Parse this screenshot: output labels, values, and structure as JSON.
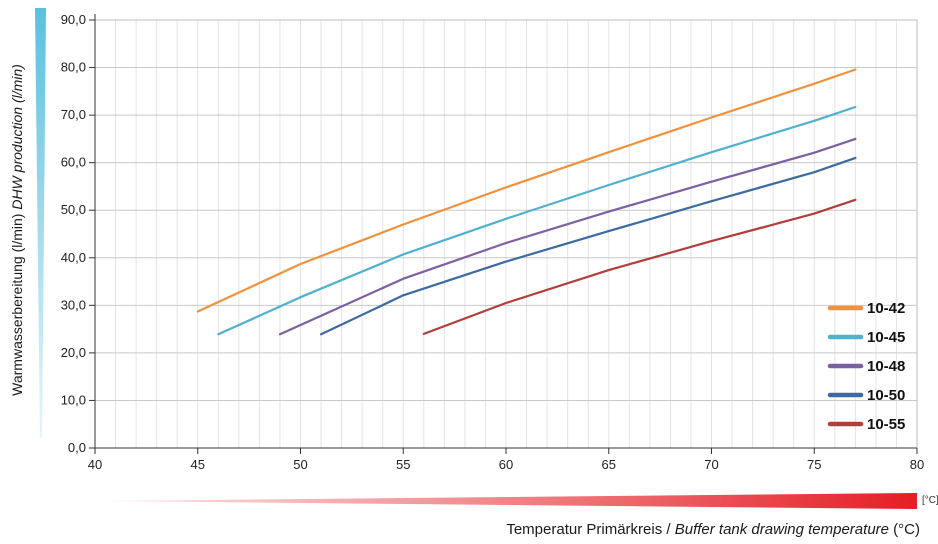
{
  "chart_data": {
    "type": "line",
    "xlabel_main": "Temperatur Primärkreis / ",
    "xlabel_italic": "Buffer tank drawing temperature",
    "xlabel_unit": " (°C)",
    "x_unit_tag": "[°C]",
    "ylabel_main": "Warmwasserbereitung (l/min) ",
    "ylabel_italic": "DHW production (l/min)",
    "xlim": [
      40,
      80
    ],
    "ylim": [
      0,
      90
    ],
    "xticks": [
      "40",
      "45",
      "50",
      "55",
      "60",
      "65",
      "70",
      "75",
      "80"
    ],
    "yticks": [
      "0,0",
      "10,0",
      "20,0",
      "30,0",
      "40,0",
      "50,0",
      "60,0",
      "70,0",
      "80,0",
      "90,0"
    ],
    "grid": true,
    "legend_position": "bottom-right",
    "series": [
      {
        "name": "10-42",
        "color": "#f0923d",
        "x": [
          45,
          50,
          55,
          60,
          65,
          70,
          75,
          77
        ],
        "y": [
          28.7,
          38.7,
          47.0,
          54.8,
          62.2,
          69.5,
          76.6,
          79.6
        ]
      },
      {
        "name": "10-45",
        "color": "#4fb0cf",
        "x": [
          46,
          50,
          55,
          60,
          65,
          70,
          75,
          77
        ],
        "y": [
          23.9,
          31.7,
          40.7,
          48.2,
          55.3,
          62.2,
          68.8,
          71.7
        ]
      },
      {
        "name": "10-48",
        "color": "#7e5fa2",
        "x": [
          49,
          55,
          60,
          65,
          70,
          75,
          77
        ],
        "y": [
          23.9,
          35.6,
          43.1,
          49.7,
          56.0,
          62.1,
          65.0
        ]
      },
      {
        "name": "10-50",
        "color": "#3d6aa2",
        "x": [
          51,
          55,
          60,
          65,
          70,
          75,
          77
        ],
        "y": [
          23.9,
          32.1,
          39.2,
          45.6,
          51.9,
          58.0,
          61.0
        ]
      },
      {
        "name": "10-55",
        "color": "#b23e3c",
        "x": [
          56,
          60,
          65,
          70,
          75,
          77
        ],
        "y": [
          24.0,
          30.5,
          37.4,
          43.5,
          49.3,
          52.2
        ]
      }
    ]
  }
}
